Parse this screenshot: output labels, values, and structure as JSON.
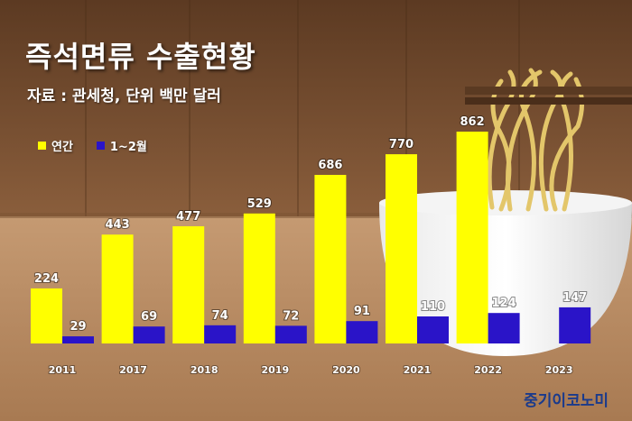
{
  "title": "즉석면류 수출현황",
  "subtitle": "자료 : 관세청, 단위 백만 달러",
  "brand": "중기이코노미",
  "colors": {
    "annual": "#ffff00",
    "jan_feb": "#2a14c8"
  },
  "chart_data": {
    "type": "bar",
    "title": "즉석면류 수출현황",
    "categories": [
      "2011",
      "2017",
      "2018",
      "2019",
      "2020",
      "2021",
      "2022",
      "2023"
    ],
    "series": [
      {
        "name": "연간",
        "values": [
          224,
          443,
          477,
          529,
          686,
          770,
          862,
          null
        ]
      },
      {
        "name": "1~2월",
        "values": [
          29,
          69,
          74,
          72,
          91,
          110,
          124,
          147
        ]
      }
    ],
    "ylim": [
      0,
      900
    ],
    "grid": false,
    "legend": "top-left"
  }
}
